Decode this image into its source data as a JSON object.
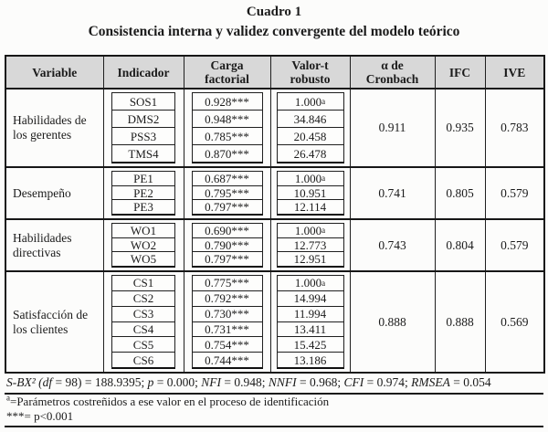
{
  "page": {
    "title": "Cuadro 1",
    "subtitle": "Consistencia interna y validez convergente del modelo teórico"
  },
  "table": {
    "columns": [
      "Variable",
      "Indicador",
      "Carga factorial",
      "Valor-t robusto",
      "α de Cronbach",
      "IFC",
      "IVE"
    ],
    "groups": [
      {
        "variable": "Habilidades de los gerentes",
        "indicators": [
          {
            "name": "SOS1",
            "loading": "0.928***",
            "t": "1.000",
            "t_sup": "a"
          },
          {
            "name": "DMS2",
            "loading": "0.948***",
            "t": "34.846"
          },
          {
            "name": "PSS3",
            "loading": "0.785***",
            "t": "20.458"
          },
          {
            "name": "TMS4",
            "loading": "0.870***",
            "t": "26.478"
          }
        ],
        "cronbach": "0.911",
        "ifc": "0.935",
        "ive": "0.783"
      },
      {
        "variable": "Desempeño",
        "indicators": [
          {
            "name": "PE1",
            "loading": "0.687***",
            "t": "1.000",
            "t_sup": "a"
          },
          {
            "name": "PE2",
            "loading": "0.795***",
            "t": "10.951"
          },
          {
            "name": "PE3",
            "loading": "0.797***",
            "t": "12.114"
          }
        ],
        "cronbach": "0.741",
        "ifc": "0.805",
        "ive": "0.579"
      },
      {
        "variable": "Habilidades directivas",
        "indicators": [
          {
            "name": "WO1",
            "loading": "0.690***",
            "t": "1.000",
            "t_sup": "a"
          },
          {
            "name": "WO2",
            "loading": "0.790***",
            "t": "12.773"
          },
          {
            "name": "WO5",
            "loading": "0.797***",
            "t": "12.951"
          }
        ],
        "cronbach": "0.743",
        "ifc": "0.804",
        "ive": "0.579"
      },
      {
        "variable": "Satisfacción de los clientes",
        "indicators": [
          {
            "name": "CS1",
            "loading": "0.775***",
            "t": "1.000",
            "t_sup": "a"
          },
          {
            "name": "CS2",
            "loading": "0.792***",
            "t": "14.994"
          },
          {
            "name": "CS3",
            "loading": "0.730***",
            "t": "11.994"
          },
          {
            "name": "CS4",
            "loading": "0.731***",
            "t": "13.411"
          },
          {
            "name": "CS5",
            "loading": "0.754***",
            "t": "15.425"
          },
          {
            "name": "CS6",
            "loading": "0.744***",
            "t": "13.186"
          }
        ],
        "cronbach": "0.888",
        "ifc": "0.888",
        "ive": "0.569"
      }
    ]
  },
  "footer": {
    "fit_line": [
      {
        "text": "S-BX² (",
        "italic": true
      },
      {
        "text": "df",
        "italic": true
      },
      {
        "text": " = 98) = 188.9395; ",
        "italic": false
      },
      {
        "text": "p",
        "italic": true
      },
      {
        "text": " = 0.000; ",
        "italic": false
      },
      {
        "text": "NFI",
        "italic": true
      },
      {
        "text": " = 0.948; ",
        "italic": false
      },
      {
        "text": "NNFI",
        "italic": true
      },
      {
        "text": " = 0.968; ",
        "italic": false
      },
      {
        "text": "CFI",
        "italic": true
      },
      {
        "text": " = 0.974; ",
        "italic": false
      },
      {
        "text": "RMSEA",
        "italic": true
      },
      {
        "text": " = 0.054",
        "italic": false
      }
    ],
    "note_a_marker": "a",
    "note_a_text": "=Parámetros costreñidos a ese valor en el proceso de identificación",
    "note_sig": "***= p<0.001"
  },
  "colors": {
    "header_bg": "#d8d8d8",
    "border": "#1f1f1f",
    "text": "#1b1b1b",
    "page_bg": "#fcfcfb"
  }
}
